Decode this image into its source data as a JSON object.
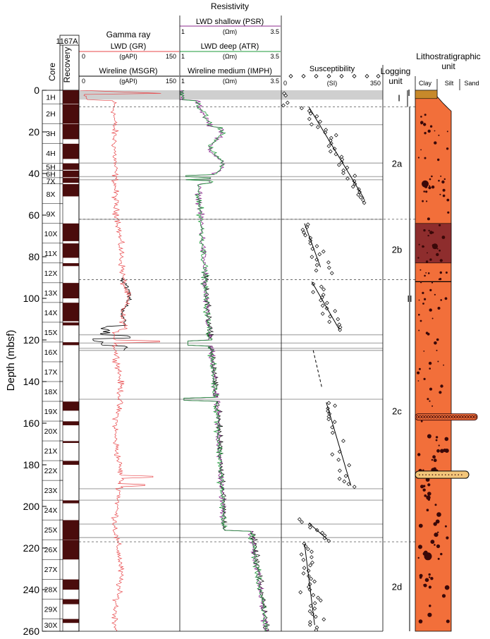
{
  "chart_data": {
    "type": "line",
    "site": "1167A",
    "depth_axis": {
      "label": "Depth (mbsf)",
      "range": [
        0,
        260
      ],
      "ticks": [
        0,
        20,
        40,
        60,
        80,
        100,
        120,
        140,
        160,
        180,
        200,
        220,
        240,
        260
      ]
    },
    "headers": {
      "core": "Core",
      "recovery": "Recovery",
      "gamma_title": "Gamma ray",
      "lwd_gr": "LWD (GR)",
      "wireline_msgr": "Wireline (MSGR)",
      "gamma_unit": "(gAPI)",
      "gamma_min": "0",
      "gamma_max": "150",
      "resistivity_title": "Resistivity",
      "psr": "LWD shallow (PSR)",
      "atr": "LWD deep (ATR)",
      "imph": "Wireline medium (IMPH)",
      "res_unit": "(Ωm)",
      "res_min": "1",
      "res_max": "3.5",
      "suscept_title": "Susceptibility",
      "suscept_unit": "(SI)",
      "suscept_min": "0",
      "suscept_max": "350",
      "logging_unit_1": "Logging",
      "logging_unit_2": "unit",
      "litho_1": "Lithostratigraphic",
      "litho_2": "unit",
      "clay": "Clay",
      "silt": "Silt",
      "sand": "Sand"
    },
    "cores": [
      {
        "label": "1H",
        "top": 0,
        "bottom": 6.5
      },
      {
        "label": "2H",
        "top": 6.5,
        "bottom": 16
      },
      {
        "label": "3H",
        "top": 16,
        "bottom": 25.5
      },
      {
        "label": "4H",
        "top": 25.5,
        "bottom": 35
      },
      {
        "label": "5H",
        "top": 35,
        "bottom": 38.5
      },
      {
        "label": "6H",
        "top": 38.5,
        "bottom": 42
      },
      {
        "label": "7X",
        "top": 42,
        "bottom": 45
      },
      {
        "label": "8X",
        "top": 45,
        "bottom": 54.5
      },
      {
        "label": "9X",
        "top": 54.5,
        "bottom": 64
      },
      {
        "label": "10X",
        "top": 64,
        "bottom": 73.5
      },
      {
        "label": "11X",
        "top": 73.5,
        "bottom": 83
      },
      {
        "label": "12X",
        "top": 83,
        "bottom": 92.5
      },
      {
        "label": "13X",
        "top": 92.5,
        "bottom": 102
      },
      {
        "label": "14X",
        "top": 102,
        "bottom": 111.5
      },
      {
        "label": "15X",
        "top": 111.5,
        "bottom": 121
      },
      {
        "label": "16X",
        "top": 121,
        "bottom": 130.5
      },
      {
        "label": "17X",
        "top": 130.5,
        "bottom": 140
      },
      {
        "label": "18X",
        "top": 140,
        "bottom": 149.5
      },
      {
        "label": "19X",
        "top": 149.5,
        "bottom": 159
      },
      {
        "label": "20X",
        "top": 159,
        "bottom": 168.5
      },
      {
        "label": "21X",
        "top": 168.5,
        "bottom": 178
      },
      {
        "label": "22X",
        "top": 178,
        "bottom": 187.5
      },
      {
        "label": "23X",
        "top": 187.5,
        "bottom": 197
      },
      {
        "label": "24X",
        "top": 197,
        "bottom": 206.5
      },
      {
        "label": "25X",
        "top": 206.5,
        "bottom": 216
      },
      {
        "label": "26X",
        "top": 216,
        "bottom": 225.5
      },
      {
        "label": "27X",
        "top": 225.5,
        "bottom": 235
      },
      {
        "label": "28X",
        "top": 235,
        "bottom": 244.5
      },
      {
        "label": "29X",
        "top": 244.5,
        "bottom": 254
      },
      {
        "label": "30X",
        "top": 254,
        "bottom": 260
      }
    ],
    "recovery_blocks": [
      [
        0,
        6.5
      ],
      [
        6.7,
        16
      ],
      [
        16.2,
        23.5
      ],
      [
        25.7,
        33
      ],
      [
        35.1,
        38.2
      ],
      [
        38.6,
        41.8
      ],
      [
        42.1,
        44.5
      ],
      [
        45.1,
        51
      ],
      [
        64,
        72.5
      ],
      [
        73.6,
        80.5
      ],
      [
        83.1,
        84.5
      ],
      [
        92.6,
        100
      ],
      [
        102.1,
        111
      ],
      [
        111.6,
        113
      ],
      [
        121.1,
        122.5
      ],
      [
        149.6,
        154
      ],
      [
        159.1,
        161
      ],
      [
        168.6,
        169.5
      ],
      [
        178.1,
        180
      ],
      [
        197.1,
        198.5
      ],
      [
        206.6,
        216
      ],
      [
        216.1,
        225.5
      ],
      [
        235.1,
        240
      ],
      [
        244.6,
        247
      ],
      [
        254.1,
        256
      ]
    ],
    "logging_units": [
      {
        "label": "I",
        "top": 0,
        "bottom": 8
      },
      {
        "label": "2a",
        "top": 8,
        "bottom": 62
      },
      {
        "label": "2b",
        "top": 62,
        "bottom": 91
      },
      {
        "label": "2c",
        "top": 91,
        "bottom": 217
      },
      {
        "label": "2d",
        "top": 217,
        "bottom": 260
      }
    ],
    "litho_units": [
      {
        "label": "I",
        "top": 0,
        "bottom": 7
      },
      {
        "label": "II",
        "top": 7,
        "bottom": 260
      }
    ],
    "washout_bands": [
      16.5,
      35,
      41.5,
      43,
      62,
      117.5,
      121.5,
      124,
      125,
      148.5,
      191.5,
      197,
      208.5,
      215
    ],
    "susceptibility_trends": [
      {
        "from": [
          95,
          8
        ],
        "to": [
          285,
          52
        ],
        "dashed": false
      },
      {
        "from": [
          80,
          64
        ],
        "to": [
          135,
          85
        ],
        "dashed": false
      },
      {
        "from": [
          105,
          92
        ],
        "to": [
          200,
          115
        ],
        "dashed": false
      },
      {
        "from": [
          110,
          125
        ],
        "to": [
          140,
          143
        ],
        "dashed": true
      },
      {
        "from": [
          155,
          150
        ],
        "to": [
          240,
          190
        ],
        "dashed": false
      },
      {
        "from": [
          95,
          208
        ],
        "to": [
          160,
          216
        ],
        "dashed": false
      },
      {
        "from": [
          80,
          218
        ],
        "to": [
          115,
          257
        ],
        "dashed": false
      }
    ]
  }
}
